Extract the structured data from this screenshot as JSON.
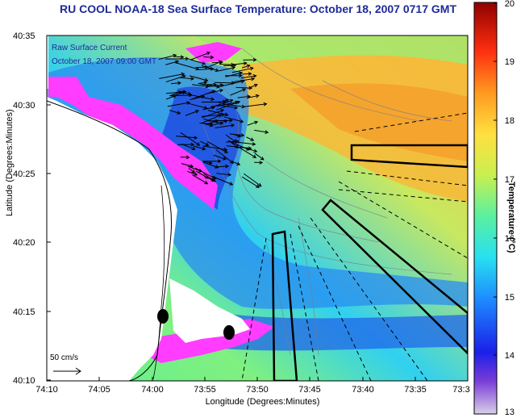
{
  "title": "RU COOL  NOAA-18  Sea Surface Temperature:  October 18, 2007 0717 GMT",
  "overlay": {
    "line1": "Raw Surface Current",
    "line2": "October 18, 2007 09:00 GMT",
    "scale": "50 cm/s"
  },
  "axes": {
    "xlabel": "Longitude (Degrees:Minutes)",
    "ylabel": "Latitude (Degrees:Minutes)",
    "xticks": [
      "74:10",
      "74:05",
      "74:00",
      "73:55",
      "73:50",
      "73:45",
      "73:40",
      "73:35",
      "73:3"
    ],
    "yticks": [
      "40:35",
      "40:30",
      "40:25",
      "40:20",
      "40:15",
      "40:10"
    ]
  },
  "colorbar": {
    "label": "Temperature (°C)",
    "ticks": [
      "20",
      "19",
      "18",
      "17",
      "16",
      "15",
      "14",
      "13"
    ],
    "min": 13,
    "max": 20
  },
  "colors": {
    "title": "#1e2a9a",
    "land": "#ffffff",
    "cloud_mask": "#ff3cff"
  }
}
